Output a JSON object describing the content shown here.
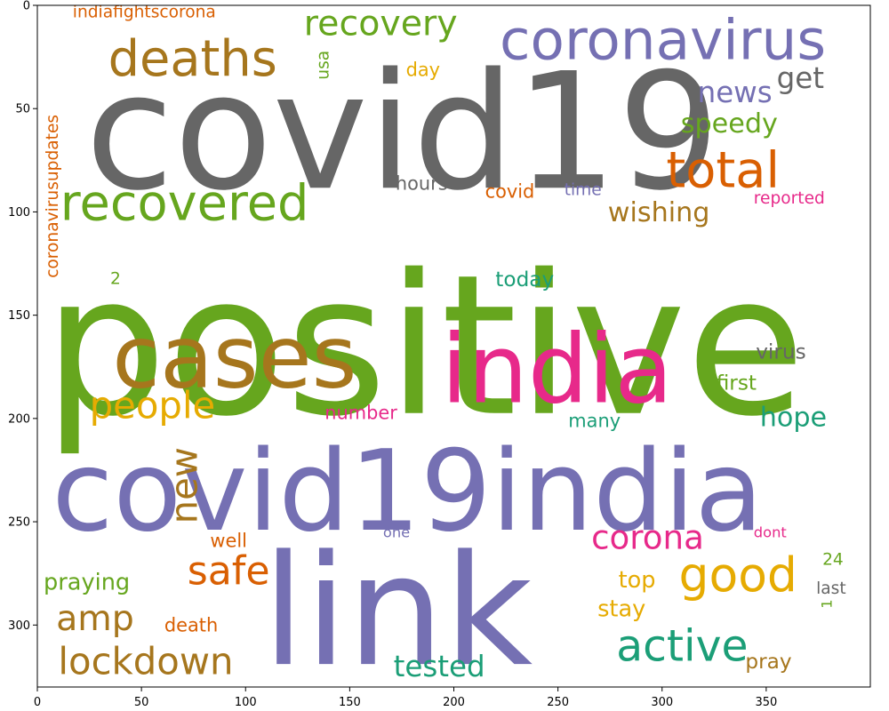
{
  "chart_data": {
    "type": "wordcloud",
    "title": "",
    "xlabel": "",
    "ylabel": "",
    "xlim": [
      0,
      400
    ],
    "ylim": [
      330,
      0
    ],
    "grid": false,
    "x_ticks": [
      0,
      50,
      100,
      150,
      200,
      250,
      300,
      350
    ],
    "y_ticks": [
      0,
      50,
      100,
      150,
      200,
      250,
      300
    ],
    "words": [
      {
        "text": "positive",
        "x": 3,
        "y": 110,
        "size": 94,
        "rotate": false,
        "color": "#66a61e"
      },
      {
        "text": "covid19",
        "x": 23,
        "y": 16,
        "size": 78,
        "rotate": false,
        "color": "#666666"
      },
      {
        "text": "link",
        "x": 108,
        "y": 250,
        "size": 74,
        "rotate": false,
        "color": "#7570b3"
      },
      {
        "text": "covid19india",
        "x": 7,
        "y": 204,
        "size": 54,
        "rotate": false,
        "color": "#7570b3"
      },
      {
        "text": "india",
        "x": 194,
        "y": 150,
        "size": 46,
        "rotate": false,
        "color": "#e7298a"
      },
      {
        "text": "cases",
        "x": 36,
        "y": 146,
        "size": 42,
        "rotate": false,
        "color": "#a6761d"
      },
      {
        "text": "coronavirus",
        "x": 222,
        "y": 1,
        "size": 27,
        "rotate": false,
        "color": "#7570b3"
      },
      {
        "text": "recovered",
        "x": 11,
        "y": 82,
        "size": 24,
        "rotate": false,
        "color": "#66a61e"
      },
      {
        "text": "deaths",
        "x": 34,
        "y": 12,
        "size": 24,
        "rotate": false,
        "color": "#a6761d"
      },
      {
        "text": "total",
        "x": 302,
        "y": 66,
        "size": 24,
        "rotate": false,
        "color": "#d95f02"
      },
      {
        "text": "good",
        "x": 308,
        "y": 262,
        "size": 23,
        "rotate": false,
        "color": "#e6ab02"
      },
      {
        "text": "active",
        "x": 278,
        "y": 298,
        "size": 21,
        "rotate": false,
        "color": "#1b9e77"
      },
      {
        "text": "safe",
        "x": 72,
        "y": 263,
        "size": 19,
        "rotate": false,
        "color": "#d95f02"
      },
      {
        "text": "lockdown",
        "x": 10,
        "y": 307,
        "size": 18,
        "rotate": false,
        "color": "#a6761d"
      },
      {
        "text": "people",
        "x": 25,
        "y": 183,
        "size": 18,
        "rotate": false,
        "color": "#e6ab02"
      },
      {
        "text": "new",
        "x": 60,
        "y": 251,
        "size": 18,
        "rotate": true,
        "color": "#a6761d"
      },
      {
        "text": "amp",
        "x": 9,
        "y": 287,
        "size": 17,
        "rotate": false,
        "color": "#a6761d"
      },
      {
        "text": "recovery",
        "x": 128,
        "y": -1,
        "size": 17,
        "rotate": false,
        "color": "#66a61e"
      },
      {
        "text": "corona",
        "x": 266,
        "y": 248,
        "size": 16,
        "rotate": false,
        "color": "#e7298a"
      },
      {
        "text": "tested",
        "x": 171,
        "y": 312,
        "size": 14,
        "rotate": false,
        "color": "#1b9e77"
      },
      {
        "text": "news",
        "x": 317,
        "y": 34,
        "size": 14,
        "rotate": false,
        "color": "#7570b3"
      },
      {
        "text": "get",
        "x": 355,
        "y": 27,
        "size": 14,
        "rotate": false,
        "color": "#666666"
      },
      {
        "text": "speedy",
        "x": 309,
        "y": 50,
        "size": 13,
        "rotate": false,
        "color": "#66a61e"
      },
      {
        "text": "wishing",
        "x": 274,
        "y": 93,
        "size": 13,
        "rotate": false,
        "color": "#a6761d"
      },
      {
        "text": "hope",
        "x": 347,
        "y": 192,
        "size": 13,
        "rotate": false,
        "color": "#1b9e77"
      },
      {
        "text": "top",
        "x": 279,
        "y": 272,
        "size": 11,
        "rotate": false,
        "color": "#e6ab02"
      },
      {
        "text": "stay",
        "x": 269,
        "y": 286,
        "size": 11,
        "rotate": false,
        "color": "#e6ab02"
      },
      {
        "text": "praying",
        "x": 3,
        "y": 273,
        "size": 11,
        "rotate": false,
        "color": "#66a61e"
      },
      {
        "text": "virus",
        "x": 345,
        "y": 162,
        "size": 10,
        "rotate": false,
        "color": "#666666"
      },
      {
        "text": "first",
        "x": 326,
        "y": 177,
        "size": 10,
        "rotate": false,
        "color": "#66a61e"
      },
      {
        "text": "today",
        "x": 220,
        "y": 127,
        "size": 10,
        "rotate": false,
        "color": "#1b9e77"
      },
      {
        "text": "pray",
        "x": 340,
        "y": 312,
        "size": 10,
        "rotate": false,
        "color": "#a6761d"
      },
      {
        "text": "day",
        "x": 177,
        "y": 26,
        "size": 9,
        "rotate": false,
        "color": "#e6ab02"
      },
      {
        "text": "covid",
        "x": 215,
        "y": 85,
        "size": 9,
        "rotate": false,
        "color": "#d95f02"
      },
      {
        "text": "hours",
        "x": 172,
        "y": 81,
        "size": 9,
        "rotate": false,
        "color": "#666666"
      },
      {
        "text": "death",
        "x": 61,
        "y": 295,
        "size": 9,
        "rotate": false,
        "color": "#d95f02"
      },
      {
        "text": "well",
        "x": 83,
        "y": 254,
        "size": 9,
        "rotate": false,
        "color": "#d95f02"
      },
      {
        "text": "many",
        "x": 255,
        "y": 196,
        "size": 9,
        "rotate": false,
        "color": "#1b9e77"
      },
      {
        "text": "number",
        "x": 138,
        "y": 192,
        "size": 9,
        "rotate": false,
        "color": "#e7298a"
      },
      {
        "text": "indiafightscorona",
        "x": 17,
        "y": -1,
        "size": 8,
        "rotate": false,
        "color": "#d95f02"
      },
      {
        "text": "coronavirusupdates",
        "x": 3,
        "y": 132,
        "size": 8,
        "rotate": true,
        "color": "#d95f02"
      },
      {
        "text": "usa",
        "x": 133,
        "y": 36,
        "size": 8,
        "rotate": true,
        "color": "#66a61e"
      },
      {
        "text": "time",
        "x": 253,
        "y": 85,
        "size": 8,
        "rotate": false,
        "color": "#7570b3"
      },
      {
        "text": "reported",
        "x": 344,
        "y": 89,
        "size": 8,
        "rotate": false,
        "color": "#e7298a"
      },
      {
        "text": "last",
        "x": 374,
        "y": 278,
        "size": 8,
        "rotate": false,
        "color": "#666666"
      },
      {
        "text": "24",
        "x": 377,
        "y": 264,
        "size": 8,
        "rotate": false,
        "color": "#66a61e"
      },
      {
        "text": "2",
        "x": 35,
        "y": 128,
        "size": 8,
        "rotate": false,
        "color": "#66a61e"
      },
      {
        "text": "1",
        "x": 375,
        "y": 292,
        "size": 7,
        "rotate": true,
        "color": "#66a61e"
      },
      {
        "text": "one",
        "x": 166,
        "y": 251,
        "size": 7,
        "rotate": false,
        "color": "#7570b3"
      },
      {
        "text": "dont",
        "x": 344,
        "y": 251,
        "size": 7,
        "rotate": false,
        "color": "#e7298a"
      }
    ]
  }
}
